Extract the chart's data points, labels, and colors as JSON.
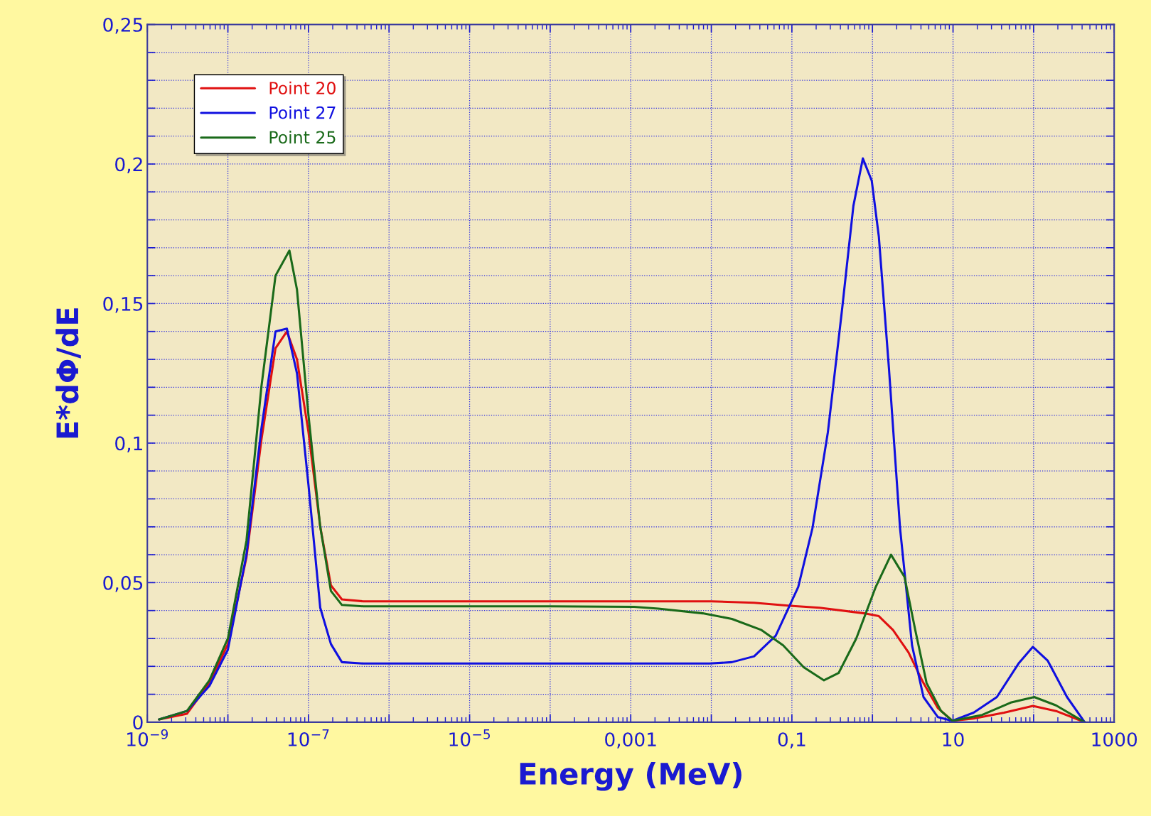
{
  "chart_data": {
    "type": "line",
    "xlabel": "Energy (MeV)",
    "ylabel": "E*dΦ/dE",
    "log": "x",
    "grid": true,
    "legend": "top left",
    "marker": "none",
    "line_style": "solid",
    "xlim": [
      1e-09,
      1000
    ],
    "xticks": [
      {
        "value": 1e-09,
        "label": "10$^{−9}$"
      },
      {
        "value": 1e-08,
        "label": null
      },
      {
        "value": 1e-07,
        "label": "10$^{−7}$"
      },
      {
        "value": 1e-06,
        "label": null
      },
      {
        "value": 1e-05,
        "label": "10$^{−5}$"
      },
      {
        "value": 0.0001,
        "label": null
      },
      {
        "value": 0.001,
        "label": "0,001"
      },
      {
        "value": 0.01,
        "label": null
      },
      {
        "value": 0.1,
        "label": "0,1"
      },
      {
        "value": 1,
        "label": null
      },
      {
        "value": 10,
        "label": "10"
      },
      {
        "value": 100,
        "label": null
      },
      {
        "value": 1000,
        "label": "1000"
      }
    ],
    "ylim": [
      0,
      0.25
    ],
    "yticks": [
      {
        "value": 0,
        "label": "0"
      },
      {
        "value": 0.01,
        "label": null
      },
      {
        "value": 0.02,
        "label": null
      },
      {
        "value": 0.03,
        "label": null
      },
      {
        "value": 0.04,
        "label": null
      },
      {
        "value": 0.05,
        "label": "0,05"
      },
      {
        "value": 0.06,
        "label": null
      },
      {
        "value": 0.07,
        "label": null
      },
      {
        "value": 0.08,
        "label": null
      },
      {
        "value": 0.09,
        "label": null
      },
      {
        "value": 0.1,
        "label": "0,1"
      },
      {
        "value": 0.11,
        "label": null
      },
      {
        "value": 0.12,
        "label": null
      },
      {
        "value": 0.13,
        "label": null
      },
      {
        "value": 0.14,
        "label": null
      },
      {
        "value": 0.15,
        "label": "0,15"
      },
      {
        "value": 0.16,
        "label": null
      },
      {
        "value": 0.17,
        "label": null
      },
      {
        "value": 0.18,
        "label": null
      },
      {
        "value": 0.19,
        "label": null
      },
      {
        "value": 0.2,
        "label": "0,2"
      },
      {
        "value": 0.21,
        "label": null
      },
      {
        "value": 0.22,
        "label": null
      },
      {
        "value": 0.23,
        "label": null
      },
      {
        "value": 0.24,
        "label": null
      },
      {
        "value": 0.25,
        "label": "0,25"
      }
    ],
    "series": [
      {
        "name": "Point 20",
        "color": "#e01010",
        "x": [
          1.4e-09,
          3.1e-09,
          5.9e-09,
          1e-08,
          1.7e-08,
          2.6e-08,
          3.9e-08,
          5.4e-08,
          7.2e-08,
          1e-07,
          1.4e-07,
          1.9e-07,
          2.6e-07,
          4.8e-07,
          0.0001,
          0.01,
          0.034,
          0.095,
          0.22,
          0.79,
          1.2,
          1.8,
          2.8,
          4.3,
          6.5,
          9.8,
          18,
          43,
          98,
          190,
          430
        ],
        "values": [
          0.001,
          0.003,
          0.014,
          0.028,
          0.059,
          0.101,
          0.134,
          0.14,
          0.13,
          0.104,
          0.07,
          0.049,
          0.044,
          0.0433,
          0.0433,
          0.0433,
          0.0428,
          0.0417,
          0.041,
          0.039,
          0.038,
          0.033,
          0.025,
          0.014,
          0.005,
          0.0005,
          0.0013,
          0.0034,
          0.0058,
          0.004,
          0
        ]
      },
      {
        "name": "Point 27",
        "color": "#1010e0",
        "x": [
          1.4e-09,
          3.1e-09,
          5.9e-09,
          1e-08,
          1.7e-08,
          2.6e-08,
          3.9e-08,
          5.4e-08,
          7.2e-08,
          1e-07,
          1.4e-07,
          1.9e-07,
          2.6e-07,
          4.8e-07,
          0.0001,
          0.0095,
          0.018,
          0.034,
          0.063,
          0.12,
          0.18,
          0.28,
          0.42,
          0.58,
          0.76,
          0.98,
          1.2,
          1.6,
          2.2,
          3.1,
          4.3,
          6.5,
          9.8,
          18,
          35,
          65,
          98,
          150,
          260,
          430
        ],
        "values": [
          0.001,
          0.004,
          0.013,
          0.026,
          0.06,
          0.105,
          0.14,
          0.141,
          0.125,
          0.085,
          0.041,
          0.028,
          0.0215,
          0.021,
          0.021,
          0.021,
          0.0215,
          0.0236,
          0.031,
          0.0485,
          0.0695,
          0.104,
          0.148,
          0.185,
          0.202,
          0.194,
          0.174,
          0.127,
          0.0695,
          0.0275,
          0.009,
          0.0018,
          0.0005,
          0.0034,
          0.009,
          0.021,
          0.027,
          0.022,
          0.009,
          0
        ]
      },
      {
        "name": "Point 25",
        "color": "#1a6a1a",
        "x": [
          1.4e-09,
          3.1e-09,
          5.9e-09,
          1e-08,
          1.7e-08,
          2.6e-08,
          3.9e-08,
          5.8e-08,
          7.2e-08,
          1e-07,
          1.4e-07,
          1.9e-07,
          2.6e-07,
          4.8e-07,
          0.0001,
          0.0011,
          0.0022,
          0.0078,
          0.018,
          0.042,
          0.078,
          0.14,
          0.25,
          0.38,
          0.63,
          1.1,
          1.7,
          2.5,
          3.4,
          4.7,
          7.1,
          9.8,
          23,
          52,
          102,
          190,
          430
        ],
        "values": [
          0.001,
          0.004,
          0.015,
          0.03,
          0.065,
          0.12,
          0.16,
          0.169,
          0.155,
          0.11,
          0.07,
          0.047,
          0.042,
          0.0415,
          0.0415,
          0.0413,
          0.0407,
          0.039,
          0.037,
          0.033,
          0.0275,
          0.0197,
          0.015,
          0.0176,
          0.03,
          0.0485,
          0.06,
          0.052,
          0.033,
          0.014,
          0.004,
          0.0005,
          0.0026,
          0.007,
          0.009,
          0.006,
          0
        ]
      }
    ]
  }
}
